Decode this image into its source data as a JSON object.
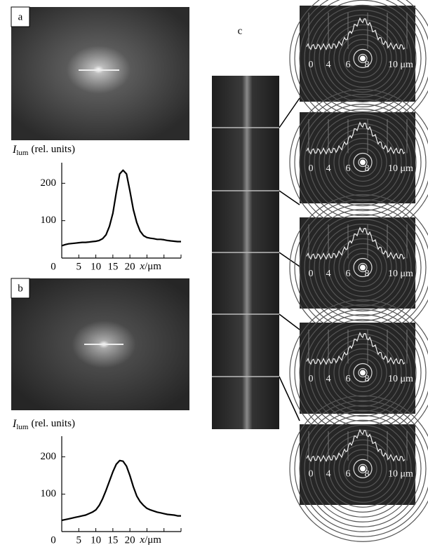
{
  "panel_labels": [
    "a",
    "b",
    "c"
  ],
  "chart_data": [
    {
      "type": "line",
      "y_label": {
        "symbol": "I",
        "subscript": "lum",
        "units": "(rel. units)"
      },
      "x_label": {
        "symbol": "x",
        "units": "/μm"
      },
      "xlim": [
        0,
        35
      ],
      "ylim": [
        0,
        255
      ],
      "xticks": [
        0,
        5,
        10,
        15,
        20
      ],
      "xminor_ticks": [
        25,
        30,
        35
      ],
      "yticks": [
        100,
        200
      ],
      "color": "#000000",
      "x": [
        0,
        1,
        2,
        3,
        4,
        5,
        6,
        7,
        8,
        9,
        10,
        11,
        12,
        13,
        14,
        15,
        16,
        17,
        18,
        19,
        20,
        21,
        22,
        23,
        24,
        25,
        26,
        27,
        28,
        29,
        30,
        31,
        32,
        33,
        34,
        35
      ],
      "values": [
        33,
        36,
        38,
        39,
        40,
        41,
        42,
        42,
        43,
        44,
        45,
        47,
        52,
        62,
        85,
        120,
        175,
        225,
        235,
        225,
        180,
        130,
        95,
        72,
        60,
        55,
        53,
        52,
        50,
        50,
        49,
        47,
        46,
        45,
        44,
        44
      ]
    },
    {
      "type": "line",
      "y_label": {
        "symbol": "I",
        "subscript": "lum",
        "units": "(rel. units)"
      },
      "x_label": {
        "symbol": "x",
        "units": "/μm"
      },
      "xlim": [
        0,
        35
      ],
      "ylim": [
        0,
        255
      ],
      "xticks": [
        0,
        5,
        10,
        15,
        20
      ],
      "xminor_ticks": [
        25,
        30,
        35
      ],
      "yticks": [
        100,
        200
      ],
      "color": "#000000",
      "x": [
        0,
        1,
        2,
        3,
        4,
        5,
        6,
        7,
        8,
        9,
        10,
        11,
        12,
        13,
        14,
        15,
        16,
        17,
        18,
        19,
        20,
        21,
        22,
        23,
        24,
        25,
        26,
        27,
        28,
        29,
        30,
        31,
        32,
        33,
        34,
        35
      ],
      "values": [
        30,
        32,
        34,
        36,
        38,
        40,
        42,
        44,
        48,
        52,
        58,
        70,
        88,
        110,
        135,
        160,
        180,
        190,
        188,
        175,
        150,
        120,
        95,
        80,
        70,
        62,
        58,
        55,
        52,
        50,
        48,
        46,
        45,
        44,
        42,
        42
      ]
    }
  ],
  "insets": [
    {
      "tick_labels": [
        "0",
        "4",
        "6",
        "8",
        "10 μm"
      ]
    },
    {
      "tick_labels": [
        "0",
        "4",
        "6",
        "8",
        "10 μm"
      ]
    },
    {
      "tick_labels": [
        "0",
        "4",
        "6",
        "8",
        "10 μm"
      ]
    },
    {
      "tick_labels": [
        "0",
        "4",
        "6",
        "8",
        "10 μm"
      ]
    },
    {
      "tick_labels": [
        "0",
        "4",
        "6",
        "8",
        "10 μm"
      ]
    }
  ]
}
